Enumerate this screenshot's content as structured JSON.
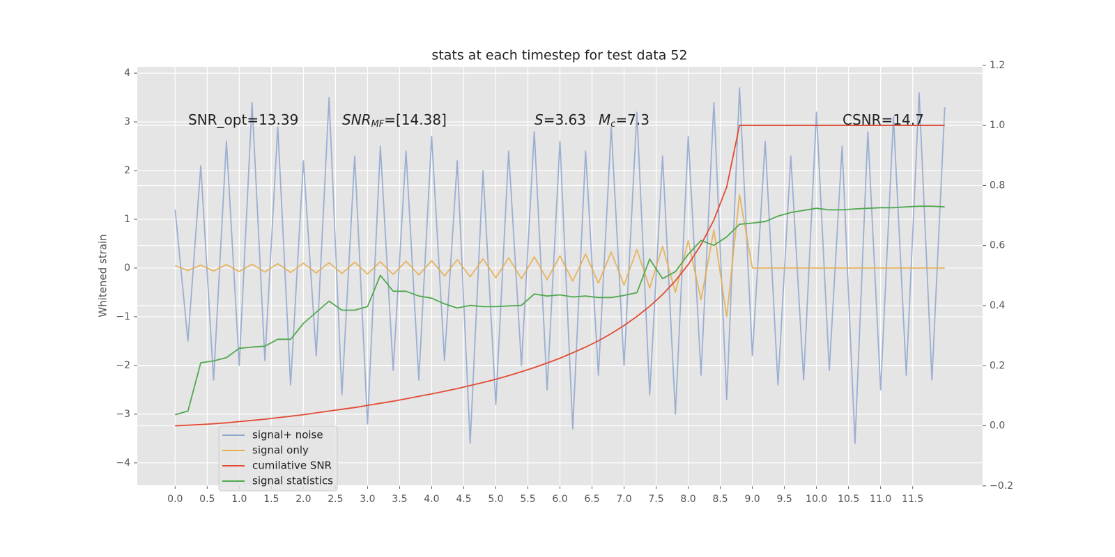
{
  "chart_data": {
    "type": "line",
    "title": "stats at each timestep for test data 52",
    "ylabel": "Whitened strain",
    "xlim": [
      -0.59,
      12.59
    ],
    "ylim": [
      -4.46,
      4.13
    ],
    "y2lim": [
      -0.198,
      1.195
    ],
    "grid": true,
    "legend": "lower left",
    "background": "#e5e5e5",
    "xticks": [
      {
        "value": 0,
        "label": "0.0"
      },
      0.5,
      {
        "value": 1,
        "label": "1.0"
      },
      1.5,
      {
        "value": 2,
        "label": "2.0"
      },
      2.5,
      {
        "value": 3,
        "label": "3.0"
      },
      3.5,
      {
        "value": 4,
        "label": "4.0"
      },
      4.5,
      {
        "value": 5,
        "label": "5.0"
      },
      5.5,
      {
        "value": 6,
        "label": "6.0"
      },
      6.5,
      {
        "value": 7,
        "label": "7.0"
      },
      7.5,
      {
        "value": 8,
        "label": "8.0"
      },
      8.5,
      {
        "value": 9,
        "label": "9.0"
      },
      9.5,
      {
        "value": 10,
        "label": "10.0"
      },
      10.5,
      {
        "value": 11,
        "label": "11.0"
      },
      11.5
    ],
    "yticks": [
      {
        "value": -4,
        "label": "−4"
      },
      {
        "value": -3,
        "label": "−3"
      },
      {
        "value": -2,
        "label": "−2"
      },
      {
        "value": -1,
        "label": "−1"
      },
      0,
      1,
      2,
      3,
      4
    ],
    "y2ticks": [
      {
        "value": -0.2,
        "label": "−0.2"
      },
      {
        "value": 0,
        "label": "0.0"
      },
      0.2,
      0.4,
      0.6,
      0.8,
      {
        "value": 1,
        "label": "1.0"
      },
      1.2
    ],
    "annotations": [
      {
        "base": "SNR_opt=13.39"
      },
      {
        "base": "SNR",
        "sub": "MF",
        "tail": "=[14.38]"
      },
      {
        "base": "S",
        "tail": "=3.63"
      },
      {
        "base": "M",
        "sub": "c",
        "tail": "=7.3"
      },
      {
        "base": "CSNR=14.7"
      }
    ],
    "x": [
      0,
      0.2,
      0.4,
      0.6,
      0.8,
      1.0,
      1.2,
      1.4,
      1.6,
      1.8,
      2.0,
      2.2,
      2.4,
      2.6,
      2.8,
      3.0,
      3.2,
      3.4,
      3.6,
      3.8,
      4.0,
      4.2,
      4.4,
      4.6,
      4.8,
      5.0,
      5.2,
      5.4,
      5.6,
      5.8,
      6.0,
      6.2,
      6.4,
      6.6,
      6.8,
      7.0,
      7.2,
      7.4,
      7.6,
      7.8,
      8.0,
      8.2,
      8.4,
      8.6,
      8.8,
      9.0,
      9.2,
      9.4,
      9.6,
      9.8,
      10.0,
      10.2,
      10.4,
      10.6,
      10.8,
      11.0,
      11.2,
      11.4,
      11.6,
      11.8,
      12.0
    ],
    "series": [
      {
        "name": "signal+ noise",
        "color": "#92a9cf",
        "values": [
          1.2,
          -1.5,
          2.1,
          -2.3,
          2.6,
          -2.0,
          3.4,
          -1.9,
          2.9,
          -2.4,
          2.2,
          -1.8,
          3.5,
          -2.6,
          2.3,
          -3.2,
          2.5,
          -2.1,
          2.4,
          -2.3,
          2.7,
          -1.9,
          2.2,
          -3.6,
          2.0,
          -2.8,
          2.4,
          -2.0,
          2.8,
          -2.5,
          2.6,
          -3.3,
          2.4,
          -2.2,
          2.9,
          -2.0,
          3.2,
          -2.6,
          2.3,
          -3.0,
          2.7,
          -2.2,
          3.4,
          -2.7,
          3.7,
          -1.8,
          2.6,
          -2.4,
          2.3,
          -2.3,
          3.2,
          -2.1,
          2.5,
          -3.6,
          2.8,
          -2.5,
          3.1,
          -2.2,
          3.6,
          -2.3,
          3.3
        ]
      },
      {
        "name": "signal only",
        "color": "#e5ae4f",
        "values": [
          0.05,
          -0.05,
          0.06,
          -0.06,
          0.07,
          -0.07,
          0.08,
          -0.08,
          0.09,
          -0.09,
          0.1,
          -0.1,
          0.11,
          -0.11,
          0.12,
          -0.12,
          0.13,
          -0.13,
          0.14,
          -0.14,
          0.15,
          -0.16,
          0.17,
          -0.18,
          0.19,
          -0.2,
          0.21,
          -0.22,
          0.23,
          -0.24,
          0.25,
          -0.27,
          0.29,
          -0.31,
          0.33,
          -0.35,
          0.38,
          -0.41,
          0.45,
          -0.5,
          0.56,
          -0.65,
          0.78,
          -1.0,
          1.5,
          0,
          0,
          0,
          0,
          0,
          0,
          0,
          0,
          0,
          0,
          0,
          0,
          0,
          0,
          0,
          0
        ]
      },
      {
        "name": "cumilative SNR",
        "color": "#e24a33",
        "axis": "y2",
        "values": [
          0,
          0.002,
          0.004,
          0.007,
          0.01,
          0.014,
          0.018,
          0.022,
          0.027,
          0.032,
          0.037,
          0.043,
          0.049,
          0.055,
          0.061,
          0.068,
          0.075,
          0.082,
          0.09,
          0.098,
          0.106,
          0.115,
          0.124,
          0.134,
          0.144,
          0.155,
          0.167,
          0.18,
          0.194,
          0.209,
          0.225,
          0.243,
          0.262,
          0.283,
          0.307,
          0.334,
          0.364,
          0.398,
          0.437,
          0.483,
          0.537,
          0.603,
          0.685,
          0.795,
          1.0,
          1.0,
          1.0,
          1.0,
          1.0,
          1.0,
          1.0,
          1.0,
          1.0,
          1.0,
          1.0,
          1.0,
          1.0,
          1.0,
          1.0,
          1.0,
          1.0
        ]
      },
      {
        "name": "signal statistics",
        "color": "#4fa84f",
        "axis": "y2",
        "values": [
          0.037,
          0.049,
          0.21,
          0.216,
          0.227,
          0.258,
          0.262,
          0.265,
          0.288,
          0.288,
          0.341,
          0.378,
          0.415,
          0.385,
          0.385,
          0.397,
          0.501,
          0.448,
          0.448,
          0.432,
          0.425,
          0.406,
          0.392,
          0.401,
          0.397,
          0.397,
          0.399,
          0.401,
          0.439,
          0.432,
          0.436,
          0.429,
          0.432,
          0.427,
          0.427,
          0.434,
          0.443,
          0.555,
          0.49,
          0.513,
          0.571,
          0.617,
          0.601,
          0.629,
          0.671,
          0.675,
          0.68,
          0.698,
          0.71,
          0.717,
          0.724,
          0.719,
          0.719,
          0.722,
          0.724,
          0.726,
          0.726,
          0.729,
          0.731,
          0.731,
          0.729
        ]
      }
    ]
  }
}
